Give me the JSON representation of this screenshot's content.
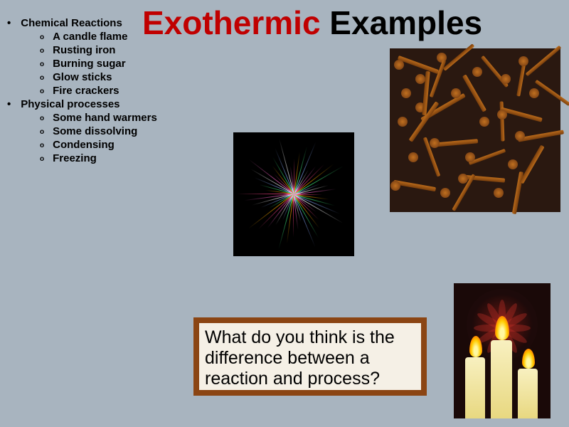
{
  "title": {
    "part1": "Exothermic",
    "part2": " Examples"
  },
  "list": {
    "section1": {
      "heading": "Chemical Reactions",
      "items": [
        "A candle flame",
        "Rusting iron",
        "Burning sugar",
        "Glow sticks",
        "Fire crackers"
      ]
    },
    "section2": {
      "heading": "Physical processes",
      "items": [
        "Some hand warmers",
        "Some dissolving",
        "Condensing",
        "Freezing"
      ]
    }
  },
  "question": "What do you think is the difference between a reaction and process?",
  "colors": {
    "background": "#a8b4bf",
    "title_red": "#c00000",
    "title_black": "#000000",
    "question_border": "#8b4513",
    "question_bg": "#f5f0e6"
  },
  "images": {
    "fireworks": {
      "ray_colors": [
        "#ff4488",
        "#ffaa00",
        "#44ff88",
        "#88aaff",
        "#ffffff",
        "#ff66cc"
      ],
      "ray_count": 48
    },
    "nails": {
      "count": 22
    },
    "candles": {
      "petal_count": 12
    }
  }
}
